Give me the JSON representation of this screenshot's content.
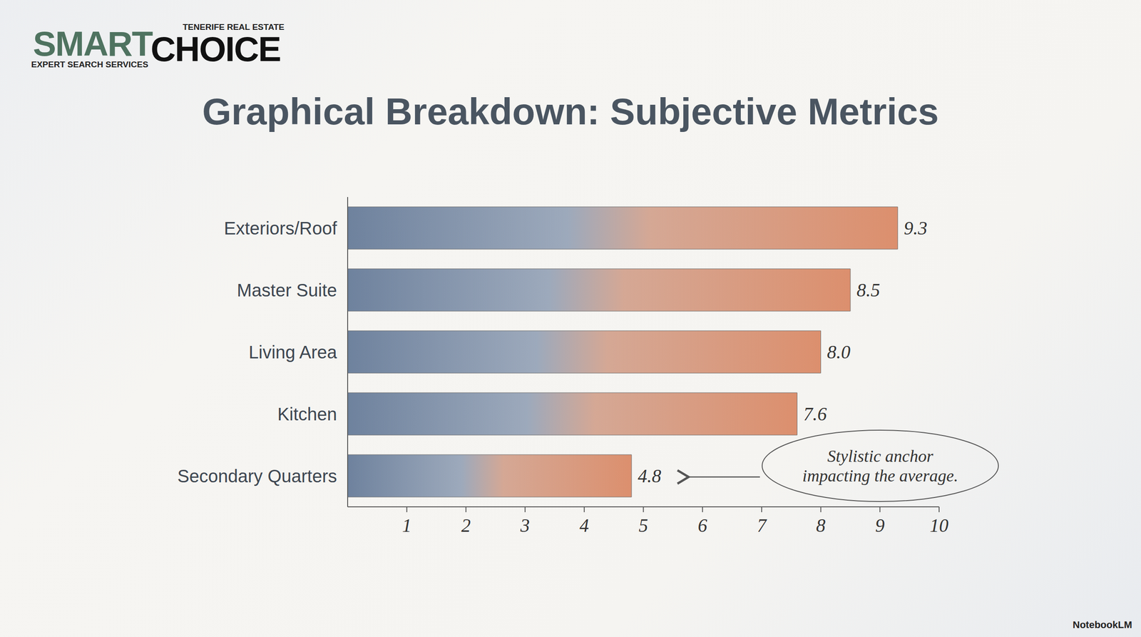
{
  "chart_data": {
    "type": "bar",
    "title": "Graphical Breakdown: Subjective Metrics",
    "orientation": "horizontal",
    "categories": [
      "Exteriors/Roof",
      "Master Suite",
      "Living Area",
      "Kitchen",
      "Secondary Quarters"
    ],
    "values": [
      9.3,
      8.5,
      8.0,
      7.6,
      4.8
    ],
    "value_labels": [
      "9.3",
      "8.5",
      "8.0",
      "7.6",
      "4.8"
    ],
    "data_labels": true,
    "color": "#5f7594",
    "xlim": [
      0,
      10
    ],
    "xticks": [
      1,
      2,
      3,
      4,
      5,
      6,
      7,
      8,
      9,
      10
    ],
    "grid": false,
    "annotation": "Stylistic anchor impacting the average."
  },
  "branding": {
    "logo_left": "SMART",
    "logo_right": "CHOICE",
    "tagline_top": "TENERIFE REAL ESTATE",
    "tagline_bottom": "EXPERT SEARCH SERVICES",
    "footer": "NotebookLM"
  }
}
